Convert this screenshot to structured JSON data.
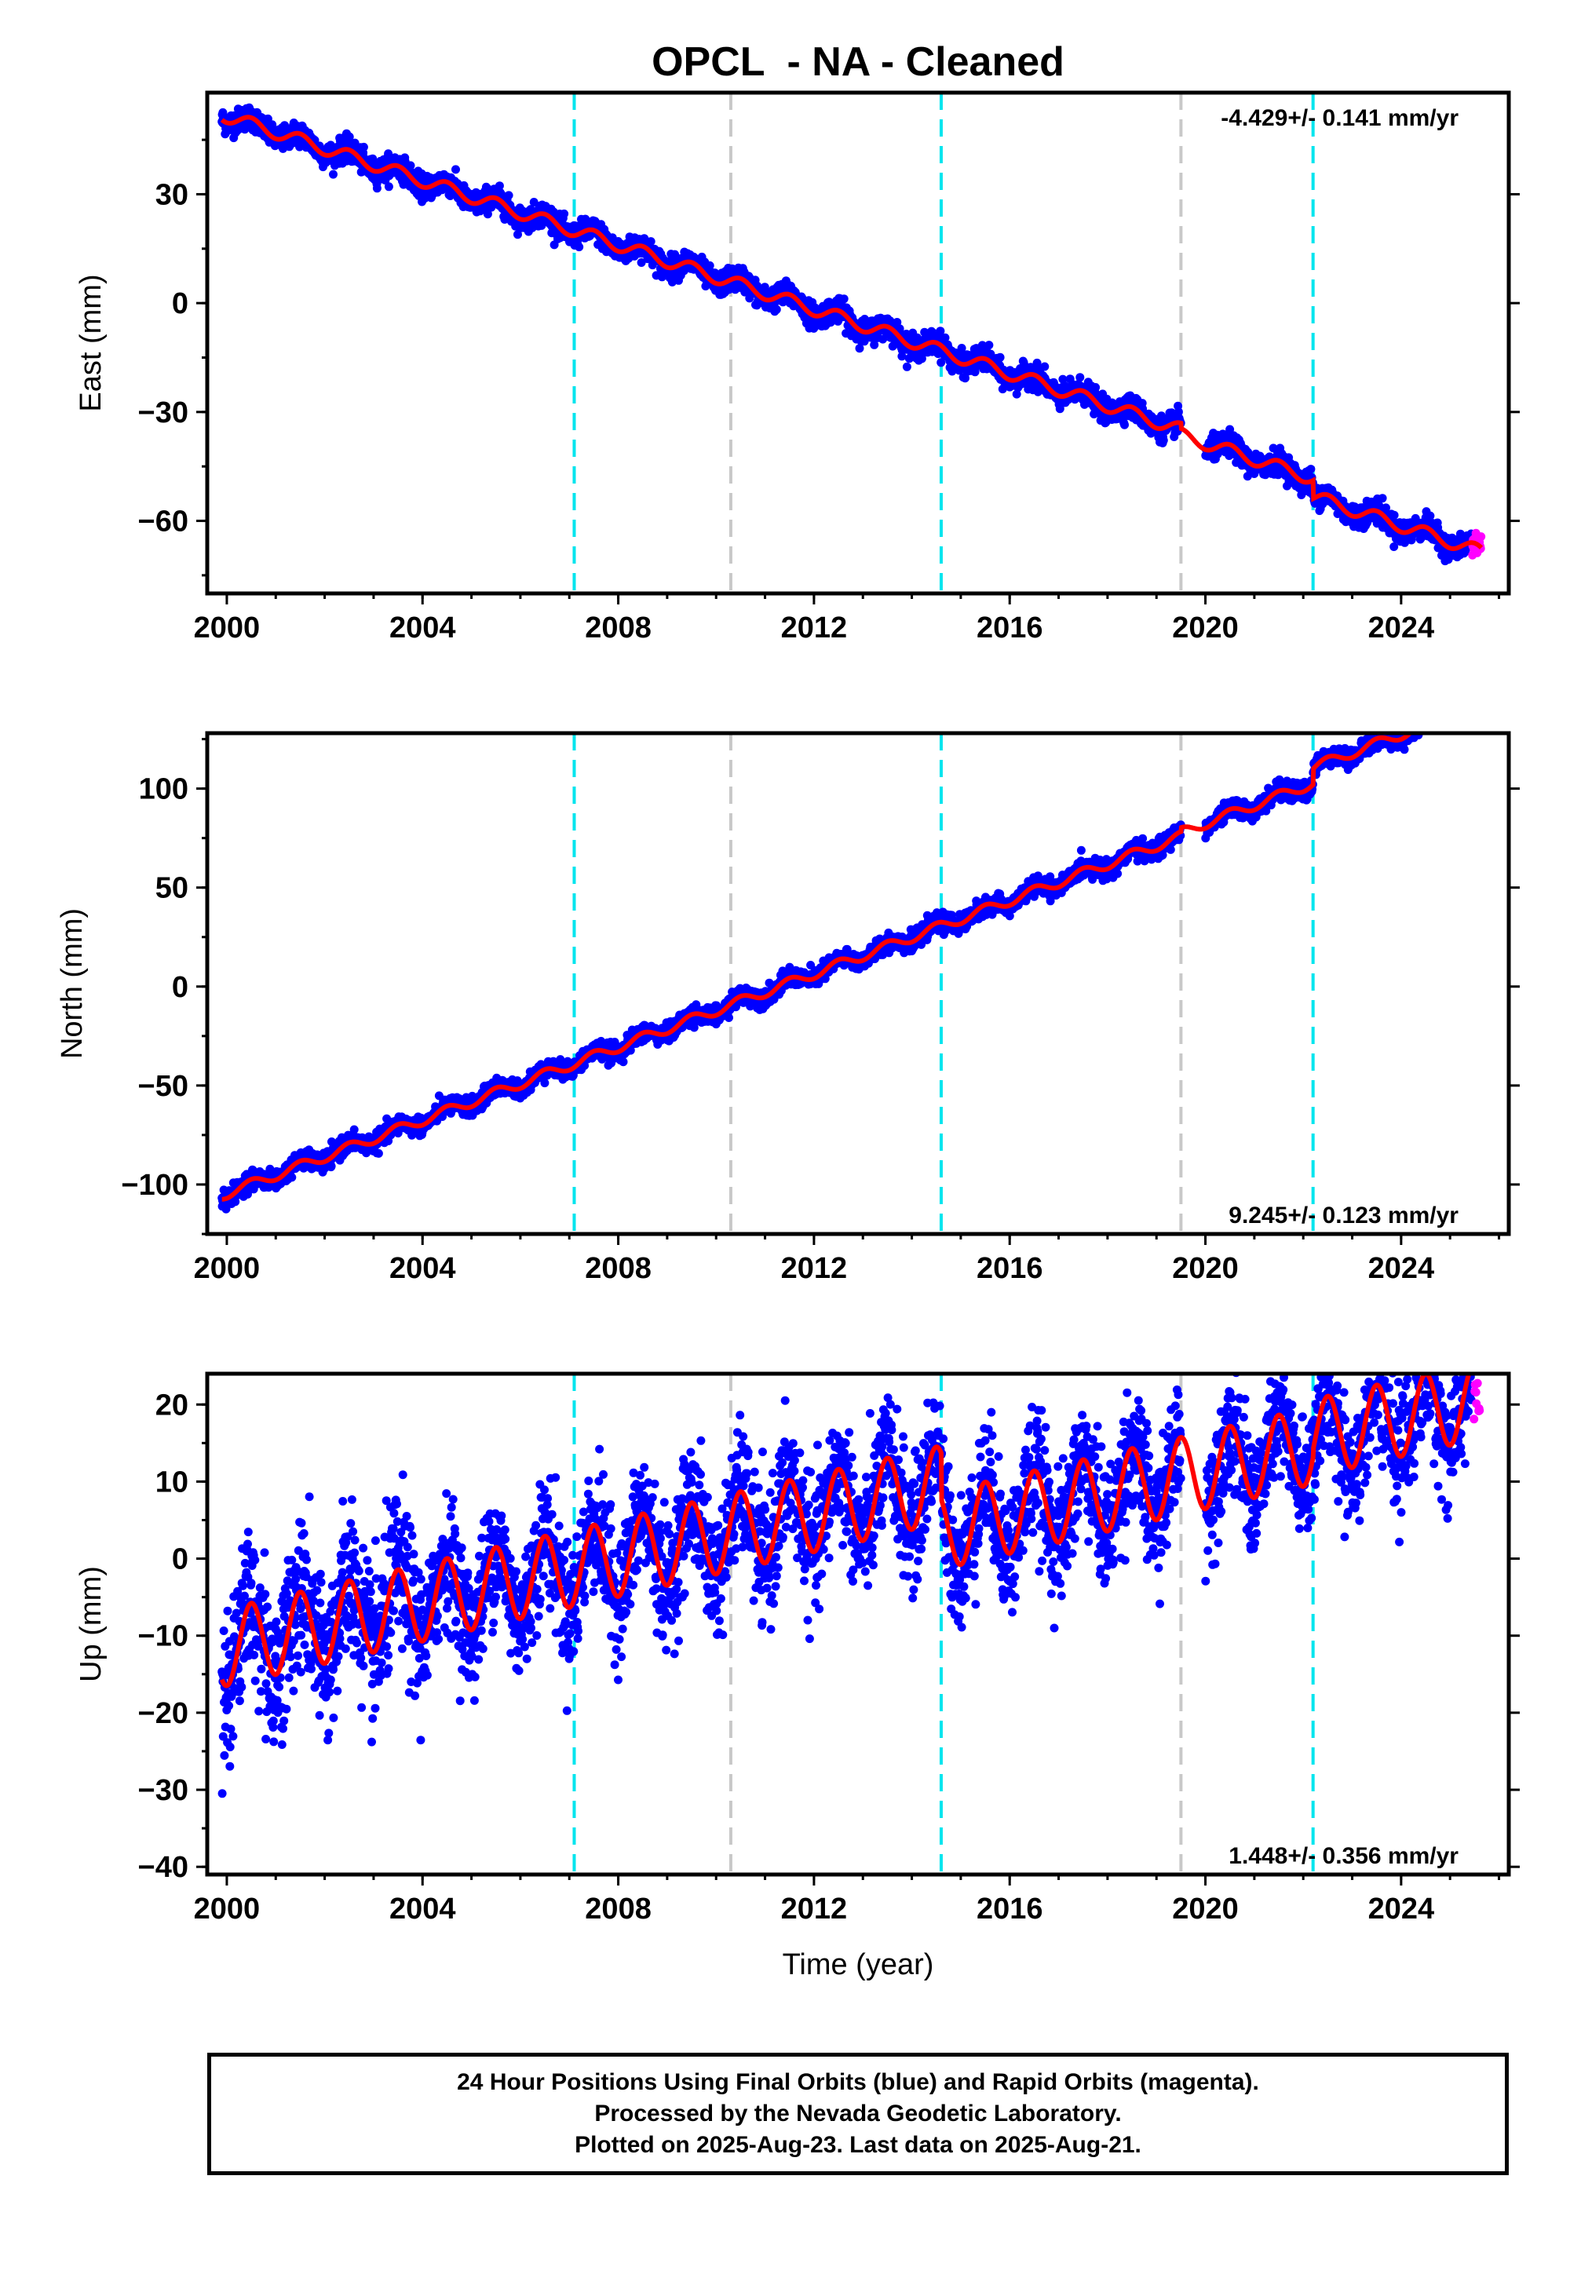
{
  "chart_data": [
    {
      "type": "scatter",
      "title": "OPCL  - NA - Cleaned",
      "ylabel": "East (mm)",
      "xlabel": "",
      "xlim": [
        1999.6,
        2026.2
      ],
      "ylim": [
        -80,
        58
      ],
      "yticks": [
        30,
        0,
        -30,
        -60
      ],
      "xticks": [
        2000,
        2004,
        2008,
        2012,
        2016,
        2020,
        2024
      ],
      "rate_label": "-4.429+/- 0.141 mm/yr",
      "rate_mm_per_yr": -4.429,
      "rate_sigma": 0.141,
      "rate_label_position": "top-right",
      "intercept_2000": 51.5,
      "annual_amplitude": 1.8,
      "noise": 1.6,
      "steps": [
        {
          "year": 2019.5,
          "offset": -1.5
        },
        {
          "year": 2022.2,
          "offset": -5.0
        }
      ],
      "gaps": [
        [
          2019.5,
          2020.0
        ]
      ],
      "series": [
        {
          "name": "Final Orbits (blue)",
          "color": "#0000ff",
          "x_range": [
            1999.9,
            2025.45
          ]
        },
        {
          "name": "Rapid Orbits (magenta)",
          "color": "#ff00ff",
          "x_range": [
            2025.45,
            2025.64
          ]
        },
        {
          "color": "#ff0000",
          "kind": "model_fit"
        }
      ]
    },
    {
      "type": "scatter",
      "title": "",
      "ylabel": "North (mm)",
      "xlabel": "",
      "xlim": [
        1999.6,
        2026.2
      ],
      "ylim": [
        -125,
        128
      ],
      "yticks": [
        100,
        50,
        0,
        -50,
        -100
      ],
      "xticks": [
        2000,
        2004,
        2008,
        2012,
        2016,
        2020,
        2024
      ],
      "rate_label": "9.245+/- 0.123 mm/yr",
      "rate_mm_per_yr": 9.245,
      "rate_sigma": 0.123,
      "rate_label_position": "bottom-right",
      "intercept_2000": -104.5,
      "annual_amplitude": 2.5,
      "noise": 2.2,
      "steps": [
        {
          "year": 2019.5,
          "offset": 2.0
        },
        {
          "year": 2022.2,
          "offset": 8.0
        }
      ],
      "gaps": [
        [
          2019.5,
          2020.0
        ]
      ],
      "series": [
        {
          "name": "Final Orbits (blue)",
          "color": "#0000ff",
          "x_range": [
            1999.9,
            2025.45
          ]
        },
        {
          "name": "Rapid Orbits (magenta)",
          "color": "#ff00ff",
          "x_range": [
            2025.45,
            2025.64
          ]
        },
        {
          "color": "#ff0000",
          "kind": "model_fit"
        }
      ]
    },
    {
      "type": "scatter",
      "title": "",
      "ylabel": "Up (mm)",
      "xlabel": "Time (year)",
      "xlim": [
        1999.6,
        2026.2
      ],
      "ylim": [
        -41,
        24
      ],
      "yticks": [
        20,
        10,
        0,
        -10,
        -20,
        -30,
        -40
      ],
      "xticks": [
        2000,
        2004,
        2008,
        2012,
        2016,
        2020,
        2024
      ],
      "rate_label": "1.448+/- 0.356 mm/yr",
      "rate_mm_per_yr": 1.448,
      "rate_sigma": 0.356,
      "rate_label_position": "bottom-right",
      "intercept_2000": -11.5,
      "annual_amplitude": 5.0,
      "noise": 4.0,
      "steps": [
        {
          "year": 2014.6,
          "offset": -6.0
        },
        {
          "year": 2022.2,
          "offset": 1.0
        }
      ],
      "gaps": [
        [
          2019.5,
          2020.0
        ]
      ],
      "series": [
        {
          "name": "Final Orbits (blue)",
          "color": "#0000ff",
          "x_range": [
            1999.9,
            2025.45
          ]
        },
        {
          "name": "Rapid Orbits (magenta)",
          "color": "#ff00ff",
          "x_range": [
            2025.45,
            2025.64
          ]
        },
        {
          "color": "#ff0000",
          "kind": "model_fit"
        }
      ]
    }
  ],
  "event_lines": {
    "cyan_years": [
      2007.1,
      2014.6,
      2022.2
    ],
    "gray_years": [
      2010.3,
      2019.5
    ],
    "cyan_color": "#00e5ee",
    "gray_color": "#c8c8c8"
  },
  "colors": {
    "final": "#0000ff",
    "rapid": "#ff00ff",
    "model": "#ff0000"
  },
  "footer": {
    "line1": "24 Hour Positions Using Final Orbits (blue) and Rapid Orbits (magenta).",
    "line2": "Processed by the Nevada Geodetic Laboratory.",
    "line3": "Plotted on 2025-Aug-23. Last data on 2025-Aug-21."
  }
}
